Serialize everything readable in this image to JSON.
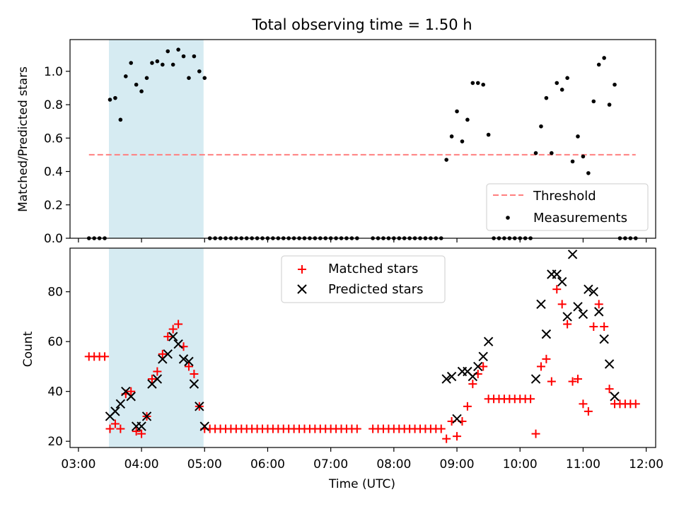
{
  "chart_data": [
    {
      "type": "scatter",
      "title": "Total observing time = 1.50 h",
      "xlabel": "",
      "ylabel": "Matched/Predicted stars",
      "xlim": [
        "02:52",
        "12:09"
      ],
      "ylim": [
        0,
        1.19
      ],
      "yticks": [
        0.0,
        0.2,
        0.4,
        0.6,
        0.8,
        1.0
      ],
      "ytick_labels": [
        "0.0",
        "0.2",
        "0.4",
        "0.6",
        "0.8",
        "1.0"
      ],
      "grid": false,
      "legend_position": "lower right",
      "highlight_span": [
        "03:29",
        "04:59"
      ],
      "highlight_color": "#add8e6",
      "series": [
        {
          "name": "Threshold",
          "kind": "dashed-line",
          "color": "#ff7f7f",
          "x": [
            "03:10",
            "11:50"
          ],
          "y": [
            0.5,
            0.5
          ]
        },
        {
          "name": "Measurements",
          "kind": "dots",
          "color": "#000000",
          "points": [
            [
              "03:10",
              0
            ],
            [
              "03:15",
              0
            ],
            [
              "03:20",
              0
            ],
            [
              "03:25",
              0
            ],
            [
              "03:30",
              0.83
            ],
            [
              "03:35",
              0.84
            ],
            [
              "03:40",
              0.71
            ],
            [
              "03:45",
              0.97
            ],
            [
              "03:50",
              1.05
            ],
            [
              "03:55",
              0.92
            ],
            [
              "04:00",
              0.88
            ],
            [
              "04:05",
              0.96
            ],
            [
              "04:10",
              1.05
            ],
            [
              "04:15",
              1.06
            ],
            [
              "04:20",
              1.04
            ],
            [
              "04:25",
              1.12
            ],
            [
              "04:30",
              1.04
            ],
            [
              "04:35",
              1.13
            ],
            [
              "04:40",
              1.09
            ],
            [
              "04:45",
              0.96
            ],
            [
              "04:50",
              1.09
            ],
            [
              "04:55",
              1.0
            ],
            [
              "05:00",
              0.96
            ],
            [
              "05:05",
              0
            ],
            [
              "05:10",
              0
            ],
            [
              "05:15",
              0
            ],
            [
              "05:20",
              0
            ],
            [
              "05:25",
              0
            ],
            [
              "05:30",
              0
            ],
            [
              "05:35",
              0
            ],
            [
              "05:40",
              0
            ],
            [
              "05:45",
              0
            ],
            [
              "05:50",
              0
            ],
            [
              "05:55",
              0
            ],
            [
              "06:00",
              0
            ],
            [
              "06:05",
              0
            ],
            [
              "06:10",
              0
            ],
            [
              "06:15",
              0
            ],
            [
              "06:20",
              0
            ],
            [
              "06:25",
              0
            ],
            [
              "06:30",
              0
            ],
            [
              "06:35",
              0
            ],
            [
              "06:40",
              0
            ],
            [
              "06:45",
              0
            ],
            [
              "06:50",
              0
            ],
            [
              "06:55",
              0
            ],
            [
              "07:00",
              0
            ],
            [
              "07:05",
              0
            ],
            [
              "07:10",
              0
            ],
            [
              "07:15",
              0
            ],
            [
              "07:20",
              0
            ],
            [
              "07:25",
              0
            ],
            [
              "07:40",
              0
            ],
            [
              "07:45",
              0
            ],
            [
              "07:50",
              0
            ],
            [
              "07:55",
              0
            ],
            [
              "08:00",
              0
            ],
            [
              "08:05",
              0
            ],
            [
              "08:10",
              0
            ],
            [
              "08:15",
              0
            ],
            [
              "08:20",
              0
            ],
            [
              "08:25",
              0
            ],
            [
              "08:30",
              0
            ],
            [
              "08:35",
              0
            ],
            [
              "08:40",
              0
            ],
            [
              "08:45",
              0
            ],
            [
              "08:50",
              0.47
            ],
            [
              "08:55",
              0.61
            ],
            [
              "09:00",
              0.76
            ],
            [
              "09:05",
              0.58
            ],
            [
              "09:10",
              0.71
            ],
            [
              "09:15",
              0.93
            ],
            [
              "09:20",
              0.93
            ],
            [
              "09:25",
              0.92
            ],
            [
              "09:30",
              0.62
            ],
            [
              "09:35",
              0
            ],
            [
              "09:40",
              0
            ],
            [
              "09:45",
              0
            ],
            [
              "09:50",
              0
            ],
            [
              "09:55",
              0
            ],
            [
              "10:00",
              0
            ],
            [
              "10:05",
              0
            ],
            [
              "10:10",
              0
            ],
            [
              "10:15",
              0.51
            ],
            [
              "10:20",
              0.67
            ],
            [
              "10:25",
              0.84
            ],
            [
              "10:30",
              0.51
            ],
            [
              "10:35",
              0.93
            ],
            [
              "10:40",
              0.89
            ],
            [
              "10:45",
              0.96
            ],
            [
              "10:50",
              0.46
            ],
            [
              "10:55",
              0.61
            ],
            [
              "11:00",
              0.49
            ],
            [
              "11:05",
              0.39
            ],
            [
              "11:10",
              0.82
            ],
            [
              "11:15",
              1.04
            ],
            [
              "11:20",
              1.08
            ],
            [
              "11:25",
              0.8
            ],
            [
              "11:30",
              0.92
            ],
            [
              "11:35",
              0
            ],
            [
              "11:40",
              0
            ],
            [
              "11:45",
              0
            ],
            [
              "11:50",
              0
            ]
          ]
        }
      ]
    },
    {
      "type": "scatter",
      "title": "",
      "xlabel": "Time (UTC)",
      "ylabel": "Count",
      "xlim": [
        "02:52",
        "12:09"
      ],
      "ylim": [
        17.5,
        97.5
      ],
      "yticks": [
        20,
        40,
        60,
        80
      ],
      "ytick_labels": [
        "20",
        "40",
        "60",
        "80"
      ],
      "xticks": [
        "03:00",
        "04:00",
        "05:00",
        "06:00",
        "07:00",
        "08:00",
        "09:00",
        "10:00",
        "11:00",
        "12:00"
      ],
      "xtick_labels": [
        "03:00",
        "04:00",
        "05:00",
        "06:00",
        "07:00",
        "08:00",
        "09:00",
        "10:00",
        "11:00",
        "12:00"
      ],
      "grid": false,
      "legend_position": "upper center",
      "highlight_span": [
        "03:29",
        "04:59"
      ],
      "highlight_color": "#add8e6",
      "series": [
        {
          "name": "Matched stars",
          "marker": "plus",
          "color": "#ff0000",
          "points": [
            [
              "03:10",
              54
            ],
            [
              "03:15",
              54
            ],
            [
              "03:20",
              54
            ],
            [
              "03:25",
              54
            ],
            [
              "03:30",
              25
            ],
            [
              "03:35",
              27
            ],
            [
              "03:40",
              25
            ],
            [
              "03:45",
              39
            ],
            [
              "03:50",
              40
            ],
            [
              "03:55",
              24
            ],
            [
              "04:00",
              23
            ],
            [
              "04:05",
              30
            ],
            [
              "04:10",
              45
            ],
            [
              "04:15",
              48
            ],
            [
              "04:20",
              55
            ],
            [
              "04:25",
              62
            ],
            [
              "04:30",
              65
            ],
            [
              "04:35",
              67
            ],
            [
              "04:40",
              58
            ],
            [
              "04:45",
              50
            ],
            [
              "04:50",
              47
            ],
            [
              "04:55",
              34
            ],
            [
              "05:00",
              25
            ],
            [
              "05:05",
              25
            ],
            [
              "05:10",
              25
            ],
            [
              "05:15",
              25
            ],
            [
              "05:20",
              25
            ],
            [
              "05:25",
              25
            ],
            [
              "05:30",
              25
            ],
            [
              "05:35",
              25
            ],
            [
              "05:40",
              25
            ],
            [
              "05:45",
              25
            ],
            [
              "05:50",
              25
            ],
            [
              "05:55",
              25
            ],
            [
              "06:00",
              25
            ],
            [
              "06:05",
              25
            ],
            [
              "06:10",
              25
            ],
            [
              "06:15",
              25
            ],
            [
              "06:20",
              25
            ],
            [
              "06:25",
              25
            ],
            [
              "06:30",
              25
            ],
            [
              "06:35",
              25
            ],
            [
              "06:40",
              25
            ],
            [
              "06:45",
              25
            ],
            [
              "06:50",
              25
            ],
            [
              "06:55",
              25
            ],
            [
              "07:00",
              25
            ],
            [
              "07:05",
              25
            ],
            [
              "07:10",
              25
            ],
            [
              "07:15",
              25
            ],
            [
              "07:20",
              25
            ],
            [
              "07:25",
              25
            ],
            [
              "07:40",
              25
            ],
            [
              "07:45",
              25
            ],
            [
              "07:50",
              25
            ],
            [
              "07:55",
              25
            ],
            [
              "08:00",
              25
            ],
            [
              "08:05",
              25
            ],
            [
              "08:10",
              25
            ],
            [
              "08:15",
              25
            ],
            [
              "08:20",
              25
            ],
            [
              "08:25",
              25
            ],
            [
              "08:30",
              25
            ],
            [
              "08:35",
              25
            ],
            [
              "08:40",
              25
            ],
            [
              "08:45",
              25
            ],
            [
              "08:50",
              21
            ],
            [
              "08:55",
              28
            ],
            [
              "09:00",
              22
            ],
            [
              "09:05",
              28
            ],
            [
              "09:10",
              34
            ],
            [
              "09:15",
              43
            ],
            [
              "09:20",
              47
            ],
            [
              "09:25",
              50
            ],
            [
              "09:30",
              37
            ],
            [
              "09:35",
              37
            ],
            [
              "09:40",
              37
            ],
            [
              "09:45",
              37
            ],
            [
              "09:50",
              37
            ],
            [
              "09:55",
              37
            ],
            [
              "10:00",
              37
            ],
            [
              "10:05",
              37
            ],
            [
              "10:10",
              37
            ],
            [
              "10:15",
              23
            ],
            [
              "10:20",
              50
            ],
            [
              "10:25",
              53
            ],
            [
              "10:30",
              44
            ],
            [
              "10:35",
              81
            ],
            [
              "10:40",
              75
            ],
            [
              "10:45",
              67
            ],
            [
              "10:50",
              44
            ],
            [
              "10:55",
              45
            ],
            [
              "11:00",
              35
            ],
            [
              "11:05",
              32
            ],
            [
              "11:10",
              66
            ],
            [
              "11:15",
              75
            ],
            [
              "11:20",
              66
            ],
            [
              "11:25",
              41
            ],
            [
              "11:30",
              35
            ],
            [
              "11:35",
              35
            ],
            [
              "11:40",
              35
            ],
            [
              "11:45",
              35
            ],
            [
              "11:50",
              35
            ]
          ]
        },
        {
          "name": "Predicted stars",
          "marker": "x",
          "color": "#000000",
          "points": [
            [
              "03:30",
              30
            ],
            [
              "03:35",
              32
            ],
            [
              "03:40",
              35
            ],
            [
              "03:45",
              40
            ],
            [
              "03:50",
              38
            ],
            [
              "03:55",
              26
            ],
            [
              "04:00",
              26
            ],
            [
              "04:05",
              30
            ],
            [
              "04:10",
              43
            ],
            [
              "04:15",
              45
            ],
            [
              "04:20",
              53
            ],
            [
              "04:25",
              55
            ],
            [
              "04:30",
              62
            ],
            [
              "04:35",
              59
            ],
            [
              "04:40",
              53
            ],
            [
              "04:45",
              52
            ],
            [
              "04:50",
              43
            ],
            [
              "04:55",
              34
            ],
            [
              "05:00",
              26
            ],
            [
              "08:50",
              45
            ],
            [
              "08:55",
              46
            ],
            [
              "09:00",
              29
            ],
            [
              "09:05",
              48
            ],
            [
              "09:10",
              48
            ],
            [
              "09:15",
              46
            ],
            [
              "09:20",
              50
            ],
            [
              "09:25",
              54
            ],
            [
              "09:30",
              60
            ],
            [
              "10:15",
              45
            ],
            [
              "10:20",
              75
            ],
            [
              "10:25",
              63
            ],
            [
              "10:30",
              87
            ],
            [
              "10:35",
              87
            ],
            [
              "10:40",
              84
            ],
            [
              "10:45",
              70
            ],
            [
              "10:50",
              95
            ],
            [
              "10:55",
              74
            ],
            [
              "11:00",
              71
            ],
            [
              "11:05",
              81
            ],
            [
              "11:10",
              80
            ],
            [
              "11:15",
              72
            ],
            [
              "11:20",
              61
            ],
            [
              "11:25",
              51
            ],
            [
              "11:30",
              38
            ]
          ]
        }
      ]
    }
  ]
}
